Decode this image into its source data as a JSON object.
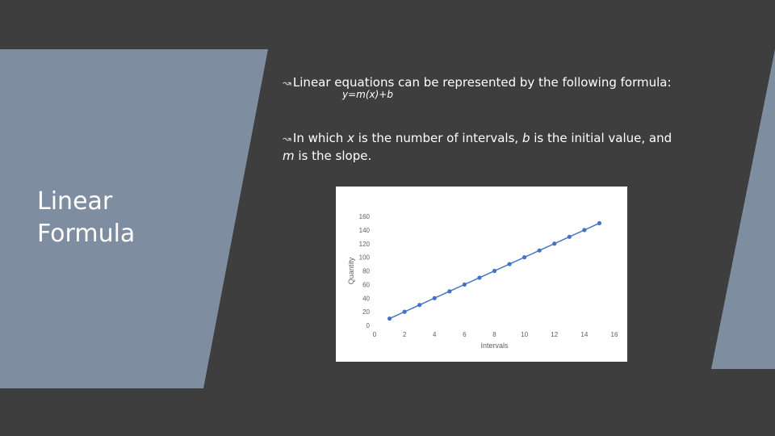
{
  "slide": {
    "title_line1": "Linear",
    "title_line2": "Formula",
    "bullet1_text": "Linear equations can be represented by the following formula:",
    "bullet1_formula": "y=m(x)+b",
    "bullet2_part1": "In which ",
    "bullet2_x": "x",
    "bullet2_part2": " is the number of intervals, ",
    "bullet2_b": "b",
    "bullet2_part3": " is the initial value, and ",
    "bullet2_m": "m",
    "bullet2_part4": " is the slope.",
    "arrow_glyph": "↝",
    "colors": {
      "background": "#3e3e3e",
      "panel": "#7e8d9f",
      "series": "#4472c4"
    }
  },
  "chart_data": {
    "type": "line",
    "title": "",
    "xlabel": "Intervals",
    "ylabel": "Quantity",
    "xlim": [
      0,
      16
    ],
    "ylim": [
      0,
      160
    ],
    "x_ticks": [
      "0",
      "2",
      "4",
      "6",
      "8",
      "10",
      "12",
      "14",
      "16"
    ],
    "y_ticks": [
      "0",
      "20",
      "40",
      "60",
      "80",
      "100",
      "120",
      "140",
      "160"
    ],
    "grid": false,
    "legend": "none",
    "series": [
      {
        "color": "#4472c4",
        "markers": true,
        "x": [
          1,
          2,
          3,
          4,
          5,
          6,
          7,
          8,
          9,
          10,
          11,
          12,
          13,
          14,
          15
        ],
        "y": [
          10,
          20,
          30,
          40,
          50,
          60,
          70,
          80,
          90,
          100,
          110,
          120,
          130,
          140,
          150
        ]
      }
    ]
  }
}
